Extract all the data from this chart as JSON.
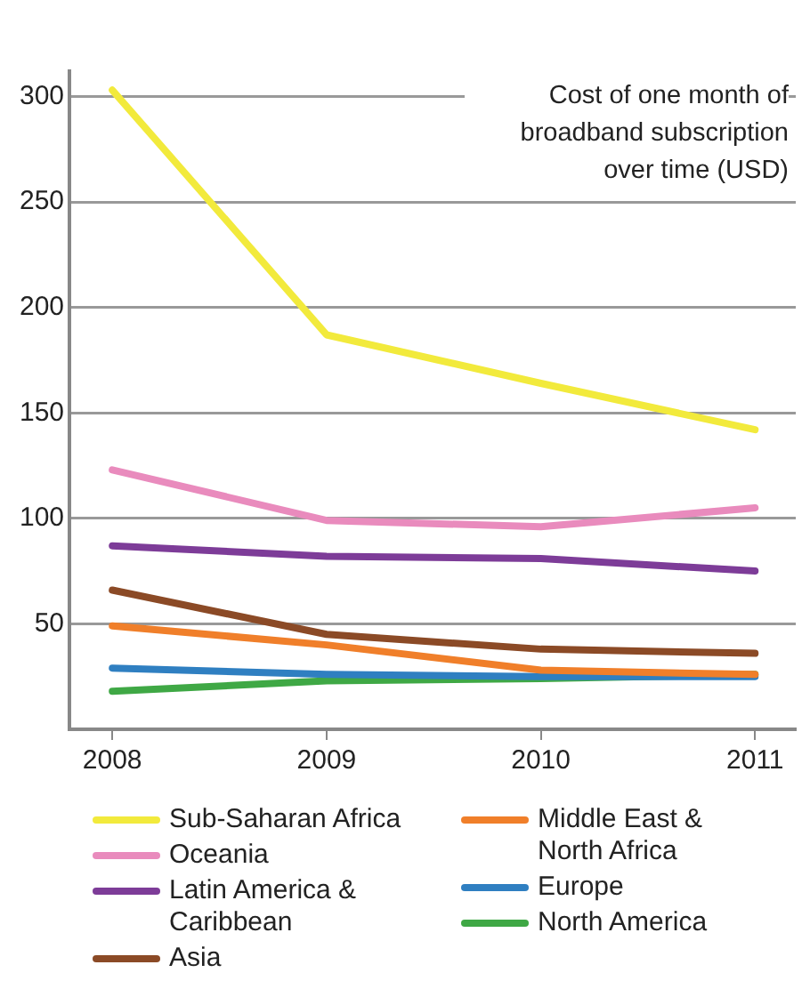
{
  "chart_data": {
    "type": "line",
    "title": "Cost of one month of broadband subscription over time (USD)",
    "x": [
      2008,
      2009,
      2010,
      2011
    ],
    "xlim": [
      2007.8,
      2011.19
    ],
    "xticks": [
      2008,
      2009,
      2010,
      2011
    ],
    "ylim": [
      0,
      312
    ],
    "yticks": [
      50,
      100,
      150,
      200,
      250,
      300
    ],
    "grid": "y",
    "legend": "bottom",
    "marker": "none",
    "line_style": "solid",
    "series": [
      {
        "name": "Sub-Saharan Africa",
        "color": "#f2ea3c",
        "values": [
          303,
          187,
          164,
          142
        ]
      },
      {
        "name": "Oceania",
        "color": "#e98bbd",
        "values": [
          123,
          99,
          96,
          105
        ]
      },
      {
        "name": "Latin America & Caribbean",
        "color": "#7d3c98",
        "values": [
          87,
          82,
          81,
          75
        ]
      },
      {
        "name": "Asia",
        "color": "#8b4a26",
        "values": [
          66,
          45,
          38,
          36
        ]
      },
      {
        "name": "Middle East & North Africa",
        "color": "#f07f2a",
        "values": [
          49,
          40,
          28,
          26
        ]
      },
      {
        "name": "Europe",
        "color": "#2f7fc1",
        "values": [
          29,
          26,
          25,
          25
        ]
      },
      {
        "name": "North America",
        "color": "#3fa845",
        "values": [
          18,
          23,
          24,
          26
        ]
      }
    ]
  }
}
